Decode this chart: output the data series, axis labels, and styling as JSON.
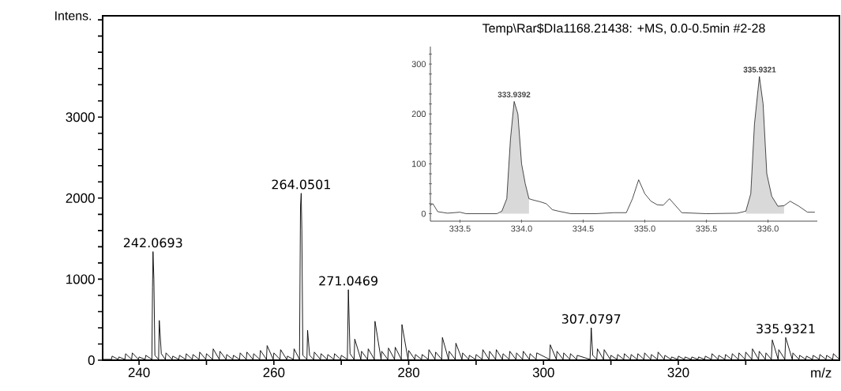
{
  "chart_data": [
    {
      "type": "line",
      "xlabel": "m/z",
      "ylabel": "Intens.",
      "xlim": [
        234.6,
        343.9
      ],
      "ylim": [
        0,
        4250
      ],
      "xticks": [
        240,
        {
          "value": 250,
          "label": null
        },
        260,
        {
          "value": 270,
          "label": null
        },
        280,
        {
          "value": 290,
          "label": null
        },
        300,
        {
          "value": 310,
          "label": null
        },
        320,
        {
          "value": 330,
          "label": null
        }
      ],
      "yticks": [
        0,
        {
          "value": 200,
          "label": null
        },
        {
          "value": 400,
          "label": null
        },
        {
          "value": 600,
          "label": null
        },
        {
          "value": 800,
          "label": null
        },
        1000,
        {
          "value": 1200,
          "label": null
        },
        {
          "value": 1400,
          "label": null
        },
        {
          "value": 1600,
          "label": null
        },
        {
          "value": 1800,
          "label": null
        },
        2000,
        {
          "value": 2200,
          "label": null
        },
        {
          "value": 2400,
          "label": null
        },
        {
          "value": 2600,
          "label": null
        },
        {
          "value": 2800,
          "label": null
        },
        3000,
        {
          "value": 3200,
          "label": null
        },
        {
          "value": 3400,
          "label": null
        },
        {
          "value": 3600,
          "label": null
        },
        {
          "value": 3800,
          "label": null
        },
        {
          "value": 4000,
          "label": null
        },
        {
          "value": 4200,
          "label": null
        }
      ],
      "series": [
        {
          "color": "#000000",
          "x": [
            234.6,
            235.9,
            236,
            236.9,
            237,
            237.9,
            238,
            238.9,
            239,
            239.9,
            240,
            240.9,
            241,
            241.9,
            242,
            242.07,
            242.2,
            242.35,
            242.9,
            243,
            243.3,
            243.9,
            244,
            244.9,
            245,
            245.9,
            246,
            246.9,
            247,
            247.9,
            248,
            248.9,
            249,
            249.9,
            250,
            250.9,
            251,
            251.9,
            252,
            252.9,
            253,
            253.9,
            254,
            254.9,
            255,
            255.9,
            256,
            256.9,
            257,
            257.9,
            258,
            258.9,
            259,
            259.9,
            260,
            260.9,
            261,
            261.9,
            262,
            262.9,
            263,
            263.8,
            263.95,
            264.05,
            264.15,
            264.3,
            264.9,
            265,
            265.3,
            265.9,
            266,
            266.9,
            267,
            267.9,
            268,
            268.9,
            269,
            269.9,
            270,
            270.9,
            271.05,
            271.3,
            271.9,
            272,
            272.9,
            273,
            273.9,
            274,
            274.9,
            275,
            275.9,
            276,
            276.9,
            277,
            277.9,
            278,
            278.9,
            279,
            279.9,
            280,
            280.9,
            281,
            281.9,
            282,
            282.9,
            283,
            283.9,
            284,
            284.9,
            285,
            285.9,
            286,
            286.9,
            287,
            287.9,
            288,
            288.9,
            289,
            289.9,
            290,
            290.9,
            291,
            291.9,
            292,
            292.9,
            293,
            293.9,
            294,
            294.9,
            295,
            295.9,
            296,
            296.9,
            297,
            297.9,
            298,
            298.9,
            299,
            300.9,
            301,
            301.9,
            302,
            302.9,
            303,
            303.9,
            304,
            304.9,
            305,
            306.9,
            307.08,
            307.3,
            307.9,
            308,
            308.9,
            309,
            309.9,
            310,
            310.9,
            311,
            311.9,
            312,
            312.9,
            313,
            313.9,
            314,
            314.9,
            315,
            315.9,
            316,
            316.9,
            317,
            317.9,
            318,
            318.9,
            319,
            319.9,
            320,
            320.9,
            321,
            321.9,
            322,
            322.9,
            323,
            323.9,
            324,
            324.9,
            325,
            325.9,
            326,
            326.9,
            327,
            327.9,
            328,
            328.9,
            329,
            329.9,
            330,
            330.9,
            331,
            331.9,
            332,
            332.9,
            333,
            333.8,
            333.94,
            334.8,
            334.9,
            335.8,
            335.93,
            336.9,
            337,
            337.9,
            338,
            338.9,
            339,
            339.9,
            340,
            340.9,
            341,
            341.9,
            342,
            342.9,
            343,
            343.9
          ],
          "values": [
            10,
            10,
            50,
            10,
            40,
            10,
            80,
            10,
            90,
            10,
            40,
            10,
            60,
            10,
            900,
            1340,
            1000,
            60,
            10,
            490,
            80,
            10,
            90,
            10,
            50,
            10,
            60,
            10,
            80,
            10,
            70,
            10,
            100,
            10,
            80,
            10,
            140,
            10,
            110,
            10,
            70,
            10,
            60,
            10,
            90,
            10,
            100,
            10,
            80,
            10,
            120,
            10,
            180,
            10,
            90,
            10,
            130,
            10,
            50,
            10,
            140,
            10,
            1900,
            2060,
            1600,
            60,
            10,
            370,
            60,
            10,
            100,
            10,
            80,
            10,
            70,
            10,
            80,
            10,
            60,
            10,
            870,
            80,
            10,
            260,
            10,
            110,
            10,
            140,
            10,
            480,
            10,
            110,
            10,
            150,
            10,
            160,
            10,
            440,
            10,
            120,
            10,
            70,
            10,
            70,
            10,
            130,
            10,
            100,
            10,
            280,
            10,
            110,
            10,
            210,
            10,
            90,
            10,
            60,
            10,
            70,
            10,
            130,
            10,
            110,
            10,
            130,
            10,
            80,
            10,
            110,
            10,
            90,
            10,
            110,
            10,
            80,
            10,
            90,
            10,
            190,
            10,
            110,
            10,
            90,
            10,
            80,
            10,
            60,
            10,
            400,
            60,
            10,
            140,
            10,
            130,
            10,
            60,
            10,
            70,
            10,
            80,
            10,
            70,
            10,
            80,
            10,
            90,
            10,
            70,
            10,
            100,
            10,
            60,
            10,
            40,
            10,
            50,
            10,
            40,
            10,
            40,
            10,
            40,
            10,
            50,
            10,
            80,
            10,
            60,
            10,
            70,
            10,
            80,
            10,
            90,
            10,
            100,
            10,
            140,
            10,
            110,
            10,
            90,
            10,
            250,
            10,
            130,
            10,
            280,
            10,
            90,
            10,
            60,
            10,
            50,
            10,
            60,
            10,
            70,
            10,
            60,
            10,
            80,
            10
          ]
        }
      ],
      "annotations": [
        {
          "text": "242.0693",
          "x": 242.0693,
          "y": 1340
        },
        {
          "text": "264.0501",
          "x": 264.0501,
          "y": 2060
        },
        {
          "text": "271.0469",
          "x": 271.0469,
          "y": 870
        },
        {
          "text": "307.0797",
          "x": 307.0797,
          "y": 400
        },
        {
          "text": "335.9321",
          "x": 335.9321,
          "y": 280
        }
      ]
    },
    {
      "type": "line",
      "title": "Temp\\Rar$DIa1168.21438: +MS, 0.0-0.5min #2-28",
      "xlim": [
        333.26,
        336.4
      ],
      "ylim": [
        -15,
        335
      ],
      "xticks": [
        {
          "value": 333.5,
          "label": "333.5"
        },
        {
          "value": 334.0,
          "label": "334.0"
        },
        {
          "value": 334.5,
          "label": "334.5"
        },
        {
          "value": 335.0,
          "label": "335.0"
        },
        {
          "value": 335.5,
          "label": "335.5"
        },
        {
          "value": 336.0,
          "label": "336.0"
        }
      ],
      "yticks": [
        0,
        {
          "value": 20,
          "label": null
        },
        {
          "value": 40,
          "label": null
        },
        {
          "value": 60,
          "label": null
        },
        {
          "value": 80,
          "label": null
        },
        100,
        {
          "value": 120,
          "label": null
        },
        {
          "value": 140,
          "label": null
        },
        {
          "value": 160,
          "label": null
        },
        {
          "value": 180,
          "label": null
        },
        200,
        {
          "value": 220,
          "label": null
        },
        {
          "value": 240,
          "label": null
        },
        {
          "value": 260,
          "label": null
        },
        {
          "value": 280,
          "label": null
        },
        300,
        {
          "value": 320,
          "label": null
        }
      ],
      "series": [
        {
          "type": "area",
          "color": "#d9d9d9",
          "x": [
            333.82,
            333.84,
            333.88,
            333.91,
            333.94,
            333.97,
            334.0,
            334.03,
            334.06
          ],
          "values": [
            0,
            5,
            30,
            150,
            225,
            200,
            100,
            60,
            30
          ]
        },
        {
          "type": "area",
          "color": "#d9d9d9",
          "x": [
            335.82,
            335.86,
            335.89,
            335.93,
            335.96,
            335.99,
            336.03,
            336.08,
            336.13
          ],
          "values": [
            5,
            40,
            180,
            275,
            220,
            80,
            35,
            15,
            16
          ]
        },
        {
          "type": "line",
          "color": "#000000",
          "x": [
            333.26,
            333.28,
            333.32,
            333.4,
            333.5,
            333.55,
            333.8,
            333.84,
            333.88,
            333.91,
            333.94,
            333.97,
            334.0,
            334.03,
            334.06,
            334.1,
            334.15,
            334.2,
            334.25,
            334.3,
            334.4,
            334.6,
            334.75,
            334.85,
            334.9,
            334.95,
            335.0,
            335.05,
            335.1,
            335.15,
            335.2,
            335.3,
            335.5,
            335.75,
            335.82,
            335.86,
            335.89,
            335.93,
            335.96,
            335.99,
            336.03,
            336.08,
            336.13,
            336.18,
            336.25,
            336.32,
            336.38
          ],
          "values": [
            17,
            20,
            4,
            1,
            3,
            0,
            0,
            5,
            30,
            150,
            225,
            200,
            100,
            60,
            30,
            27,
            24,
            20,
            8,
            5,
            0,
            0,
            2,
            2,
            30,
            68,
            40,
            25,
            18,
            17,
            30,
            2,
            0,
            1,
            5,
            40,
            180,
            275,
            220,
            80,
            35,
            15,
            16,
            25,
            15,
            3,
            3
          ]
        }
      ],
      "annotations": [
        {
          "text": "333.9392",
          "x": 333.9392,
          "y": 225
        },
        {
          "text": "335.9321",
          "x": 335.9321,
          "y": 275
        }
      ]
    }
  ]
}
